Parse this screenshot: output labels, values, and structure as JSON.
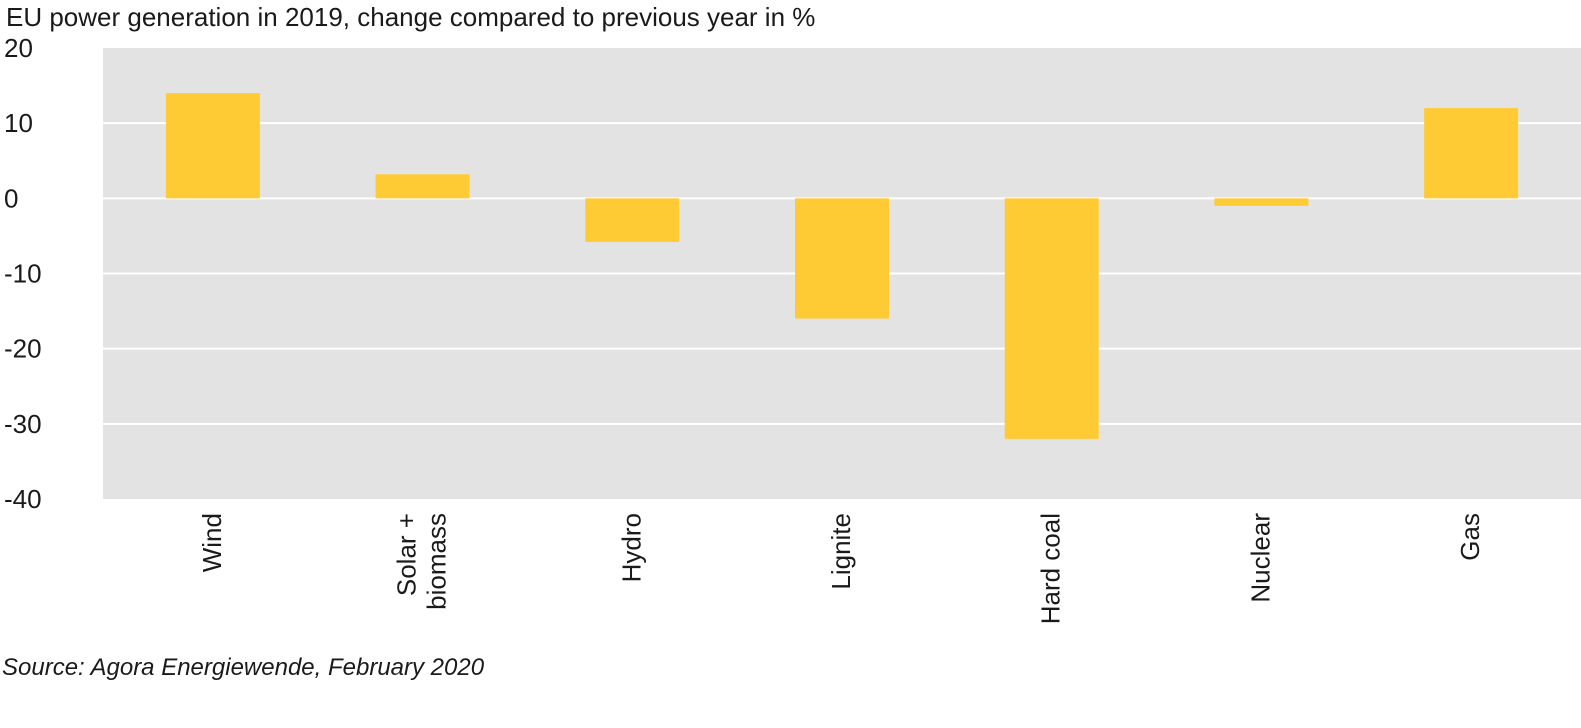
{
  "chart_data": {
    "type": "bar",
    "title": "EU power generation in 2019, change compared to previous year in %",
    "source": "Source: Agora Energiewende, February 2020",
    "categories": [
      [
        "Wind"
      ],
      [
        "Solar +",
        "biomass"
      ],
      [
        "Hydro"
      ],
      [
        "Lignite"
      ],
      [
        "Hard coal"
      ],
      [
        "Nuclear"
      ],
      [
        "Gas"
      ]
    ],
    "values": [
      14,
      3.2,
      -5.8,
      -16,
      -32,
      -1,
      12
    ],
    "ylim": [
      -40,
      20
    ],
    "yticks": [
      20,
      10,
      0,
      -10,
      -20,
      -30,
      -40
    ],
    "grid": true,
    "colors": {
      "bar": "#ffcb35",
      "plot_background": "#e3e3e3",
      "grid": "#ffffff"
    }
  }
}
